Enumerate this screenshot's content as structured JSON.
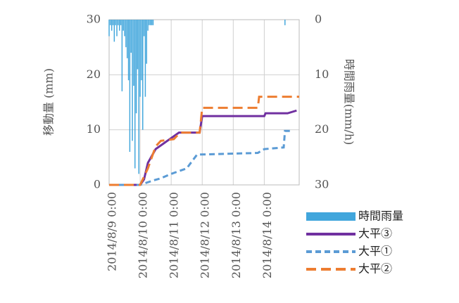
{
  "chart_data": {
    "type": "line",
    "y_label": "移動量 (mm)",
    "y2_label": "時間雨量(mm/h)",
    "xlim": [
      0,
      147
    ],
    "xticks": [
      {
        "value": 0,
        "label": "2014/8/9 0:00"
      },
      {
        "value": 24,
        "label": "2014/8/10 0:00"
      },
      {
        "value": 48,
        "label": "2014/8/11 0:00"
      },
      {
        "value": 72,
        "label": "2014/8/12 0:00"
      },
      {
        "value": 96,
        "label": "2014/8/13 0:00"
      },
      {
        "value": 120,
        "label": "2014/8/14 0:00"
      }
    ],
    "ylim": [
      0,
      30
    ],
    "yticks": [
      0,
      10,
      20,
      30
    ],
    "y2lim": [
      30,
      0
    ],
    "y2ticks": [
      0,
      10,
      20,
      30
    ],
    "grid": true,
    "legend": "lower right",
    "series": [
      {
        "name": "時間雨量",
        "type": "bar",
        "axis": "y2",
        "color": "#41a6dc",
        "x": [
          0,
          1,
          2,
          3,
          4,
          5,
          6,
          7,
          8,
          9,
          10,
          11,
          12,
          13,
          14,
          15,
          16,
          17,
          18,
          19,
          20,
          21,
          22,
          23,
          24,
          25,
          26,
          27,
          28,
          29,
          30,
          31,
          32,
          33,
          34,
          136
        ],
        "values": [
          3,
          1,
          2,
          1,
          4,
          1,
          3,
          1,
          2,
          1,
          13,
          2,
          3,
          5,
          7,
          11,
          24,
          6,
          22,
          12,
          27,
          17,
          9,
          28,
          14,
          11,
          20,
          3,
          14,
          8,
          2,
          1,
          1,
          1,
          1,
          1
        ]
      },
      {
        "name": "大平③",
        "type": "line",
        "color": "#7030a0",
        "dash": "none",
        "x": [
          0,
          24,
          27,
          30,
          36,
          42,
          48,
          54,
          70,
          72,
          120,
          121,
          138,
          145
        ],
        "values": [
          0,
          0,
          1,
          4,
          6.5,
          7.5,
          8.5,
          9.5,
          9.5,
          12.5,
          12.5,
          13,
          13,
          13.5
        ]
      },
      {
        "name": "大平①",
        "type": "line",
        "color": "#5b9bd5",
        "dash": "8 5",
        "x": [
          0,
          24,
          34,
          40,
          48,
          60,
          68,
          115,
          120,
          135,
          136,
          140
        ],
        "values": [
          0,
          0,
          0.8,
          1.2,
          2,
          3,
          5.5,
          5.8,
          6.5,
          6.8,
          9.8,
          9.8
        ]
      },
      {
        "name": "大平②",
        "type": "line",
        "color": "#ed7d31",
        "dash": "14 7",
        "x": [
          0,
          24,
          30,
          36,
          40,
          50,
          55,
          70,
          72,
          115,
          116,
          147
        ],
        "values": [
          0,
          0,
          3,
          7,
          8,
          8.3,
          9.5,
          9.5,
          14,
          14,
          16,
          16
        ]
      }
    ]
  }
}
